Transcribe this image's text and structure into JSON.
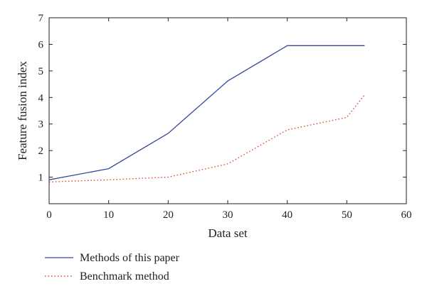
{
  "colors": {
    "axis": "#222222",
    "series_1": "#3a4a9a",
    "series_2": "#e0452a"
  },
  "chart_data": {
    "type": "line",
    "xlabel": "Data set",
    "ylabel": "Feature fusion index",
    "xlim": [
      0,
      60
    ],
    "ylim": [
      0,
      7
    ],
    "xticks": [
      0,
      10,
      20,
      30,
      40,
      50,
      60
    ],
    "yticks": [
      1,
      2,
      3,
      4,
      5,
      6,
      7
    ],
    "grid": false,
    "legend_position": "bottom-left, below plot",
    "series": [
      {
        "name": "Methods of this paper",
        "style": "solid",
        "color": "#3a4a9a",
        "x": [
          0,
          10,
          20,
          30,
          40,
          53
        ],
        "y": [
          0.9,
          1.32,
          2.65,
          4.62,
          5.95,
          5.95
        ]
      },
      {
        "name": "Benchmark method",
        "style": "dotted",
        "color": "#e0452a",
        "x": [
          0,
          10,
          20,
          30,
          40,
          50,
          53
        ],
        "y": [
          0.82,
          0.9,
          1.0,
          1.5,
          2.78,
          3.25,
          4.1
        ]
      }
    ]
  }
}
